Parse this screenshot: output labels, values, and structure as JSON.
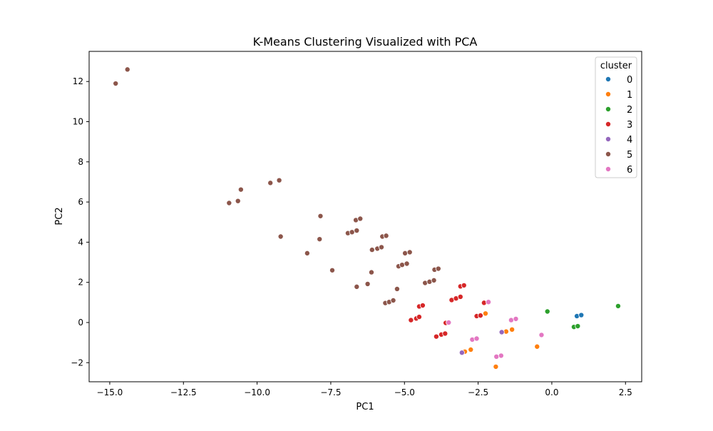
{
  "chart_data": {
    "type": "scatter",
    "title": "K-Means Clustering Visualized with PCA",
    "xlabel": "PC1",
    "ylabel": "PC2",
    "xlim": [
      -15.7,
      3.05
    ],
    "ylim": [
      -2.95,
      13.5
    ],
    "xticks": [
      -15.0,
      -12.5,
      -10.0,
      -7.5,
      -5.0,
      -2.5,
      0.0,
      2.5
    ],
    "xtick_labels": [
      "−15.0",
      "−12.5",
      "−10.0",
      "−7.5",
      "−5.0",
      "−2.5",
      "0.0",
      "2.5"
    ],
    "yticks": [
      -2,
      0,
      2,
      4,
      6,
      8,
      10,
      12
    ],
    "ytick_labels": [
      "−2",
      "0",
      "2",
      "4",
      "6",
      "8",
      "10",
      "12"
    ],
    "grid": false,
    "legend": {
      "title": "cluster",
      "position": "top-right"
    },
    "series": [
      {
        "name": "0",
        "color": "#1f77b4",
        "points": [
          [
            0.85,
            0.32
          ],
          [
            1.0,
            0.37
          ]
        ]
      },
      {
        "name": "1",
        "color": "#ff7f0e",
        "points": [
          [
            -2.25,
            0.45
          ],
          [
            -2.75,
            -1.35
          ],
          [
            -2.95,
            -1.45
          ],
          [
            -1.35,
            -0.35
          ],
          [
            -1.55,
            -0.45
          ],
          [
            -0.5,
            -1.2
          ],
          [
            -1.9,
            -2.2
          ]
        ]
      },
      {
        "name": "2",
        "color": "#2ca02c",
        "points": [
          [
            -0.15,
            0.55
          ],
          [
            2.25,
            0.82
          ],
          [
            0.75,
            -0.22
          ],
          [
            0.88,
            -0.18
          ]
        ]
      },
      {
        "name": "3",
        "color": "#d62728",
        "points": [
          [
            -3.1,
            1.8
          ],
          [
            -2.98,
            1.85
          ],
          [
            -3.4,
            1.12
          ],
          [
            -3.25,
            1.2
          ],
          [
            -3.1,
            1.28
          ],
          [
            -4.5,
            0.8
          ],
          [
            -4.38,
            0.85
          ],
          [
            -4.78,
            0.12
          ],
          [
            -4.6,
            0.2
          ],
          [
            -4.5,
            0.28
          ],
          [
            -3.6,
            -0.02
          ],
          [
            -2.3,
            0.98
          ],
          [
            -2.55,
            0.32
          ],
          [
            -2.42,
            0.35
          ],
          [
            -3.92,
            -0.7
          ],
          [
            -3.75,
            -0.6
          ],
          [
            -3.62,
            -0.55
          ]
        ]
      },
      {
        "name": "4",
        "color": "#9467bd",
        "points": [
          [
            -3.05,
            -1.5
          ],
          [
            -1.7,
            -0.48
          ]
        ]
      },
      {
        "name": "5",
        "color": "#8c564b",
        "points": [
          [
            -14.8,
            11.9
          ],
          [
            -14.4,
            12.6
          ],
          [
            -9.55,
            6.95
          ],
          [
            -9.25,
            7.08
          ],
          [
            -10.55,
            6.62
          ],
          [
            -10.95,
            5.95
          ],
          [
            -10.65,
            6.05
          ],
          [
            -9.2,
            4.28
          ],
          [
            -7.85,
            5.3
          ],
          [
            -7.88,
            4.15
          ],
          [
            -8.3,
            3.45
          ],
          [
            -7.45,
            2.6
          ],
          [
            -6.92,
            4.45
          ],
          [
            -6.78,
            4.5
          ],
          [
            -6.62,
            4.58
          ],
          [
            -6.65,
            5.1
          ],
          [
            -6.5,
            5.17
          ],
          [
            -5.75,
            4.28
          ],
          [
            -5.62,
            4.32
          ],
          [
            -6.1,
            3.62
          ],
          [
            -5.92,
            3.68
          ],
          [
            -5.78,
            3.75
          ],
          [
            -4.98,
            3.45
          ],
          [
            -4.82,
            3.5
          ],
          [
            -5.2,
            2.8
          ],
          [
            -5.08,
            2.87
          ],
          [
            -4.92,
            2.93
          ],
          [
            -3.98,
            2.63
          ],
          [
            -3.85,
            2.68
          ],
          [
            -4.3,
            1.97
          ],
          [
            -4.15,
            2.03
          ],
          [
            -4.0,
            2.1
          ],
          [
            -6.62,
            1.78
          ],
          [
            -6.25,
            1.92
          ],
          [
            -6.12,
            2.5
          ],
          [
            -5.65,
            0.97
          ],
          [
            -5.52,
            1.02
          ],
          [
            -5.38,
            1.1
          ],
          [
            -5.25,
            1.67
          ]
        ]
      },
      {
        "name": "6",
        "color": "#e377c2",
        "points": [
          [
            -2.15,
            1.02
          ],
          [
            -3.5,
            0.0
          ],
          [
            -2.7,
            -0.85
          ],
          [
            -2.55,
            -0.8
          ],
          [
            -1.38,
            0.12
          ],
          [
            -1.22,
            0.18
          ],
          [
            -0.35,
            -0.62
          ],
          [
            -1.88,
            -1.7
          ],
          [
            -1.72,
            -1.65
          ]
        ]
      }
    ]
  }
}
